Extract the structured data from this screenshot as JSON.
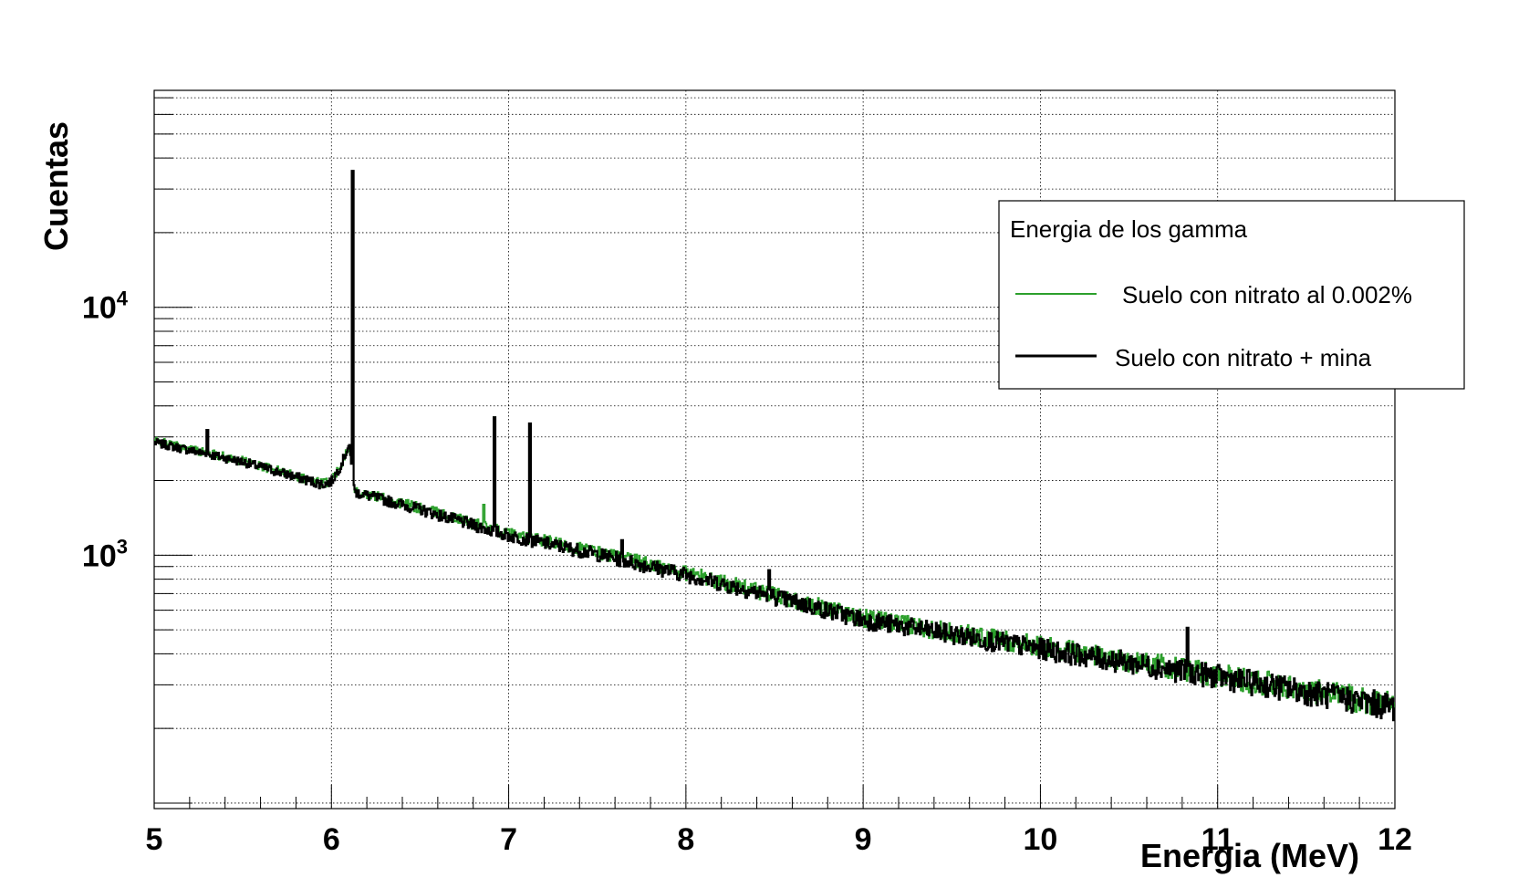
{
  "chart_data": {
    "type": "line",
    "xlabel": "Energia (MeV)",
    "ylabel": "Cuentas",
    "xlim": [
      5,
      12
    ],
    "ylim": [
      95,
      75000
    ],
    "log_y": true,
    "grid": true,
    "x_ticks": [
      5,
      6,
      7,
      8,
      9,
      10,
      11,
      12
    ],
    "x_tick_labels": [
      "5",
      "6",
      "7",
      "8",
      "9",
      "10",
      "11",
      "12"
    ],
    "y_ticks": [
      1000,
      10000
    ],
    "y_tick_labels": [
      {
        "base": "10",
        "exp": "3"
      },
      {
        "base": "10",
        "exp": "4"
      }
    ],
    "legend": {
      "title": "Energia de los gamma",
      "placement": "top-right"
    },
    "series": [
      {
        "name": "Suelo con nitrato al 0.002%",
        "color": "#2ca02c",
        "baseline": {
          "x": [
            5.0,
            5.5,
            5.95,
            6.0,
            6.05,
            6.1,
            6.13,
            6.5,
            7.0,
            7.5,
            8.0,
            8.5,
            9.0,
            10.0,
            11.0,
            12.0
          ],
          "y": [
            2900,
            2400,
            1950,
            2000,
            2300,
            2800,
            1820,
            1550,
            1220,
            1030,
            850,
            690,
            560,
            430,
            330,
            250
          ]
        },
        "peaks": [
          {
            "x": 6.12,
            "y": 35000
          },
          {
            "x": 6.86,
            "y": 1600
          },
          {
            "x": 6.92,
            "y": 3600
          },
          {
            "x": 7.12,
            "y": 3400
          }
        ]
      },
      {
        "name": "Suelo con nitrato + mina",
        "color": "#000000",
        "baseline": {
          "x": [
            5.0,
            5.5,
            5.95,
            6.0,
            6.05,
            6.1,
            6.13,
            6.5,
            7.0,
            7.5,
            8.0,
            8.5,
            9.0,
            10.0,
            11.0,
            12.0
          ],
          "y": [
            2850,
            2380,
            1930,
            1980,
            2280,
            2780,
            1800,
            1530,
            1200,
            1010,
            835,
            680,
            550,
            420,
            325,
            245
          ]
        },
        "peaks": [
          {
            "x": 5.3,
            "y": 3200
          },
          {
            "x": 6.12,
            "y": 35500
          },
          {
            "x": 6.92,
            "y": 3600
          },
          {
            "x": 7.12,
            "y": 3400
          },
          {
            "x": 7.64,
            "y": 1150
          },
          {
            "x": 8.47,
            "y": 870
          },
          {
            "x": 10.83,
            "y": 510
          }
        ]
      }
    ]
  }
}
